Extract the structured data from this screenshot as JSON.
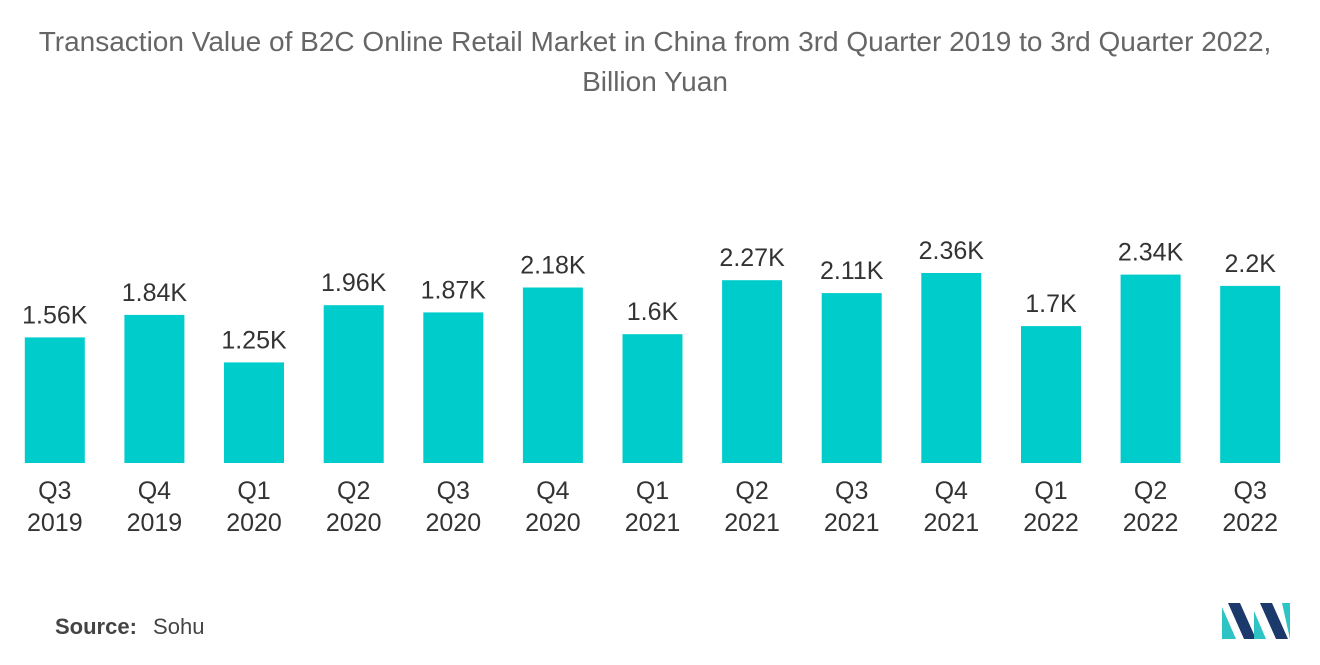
{
  "chart_data": {
    "type": "bar",
    "title": "Transaction Value of B2C Online Retail Market in China from 3rd Quarter 2019 to 3rd Quarter 2022, Billion Yuan",
    "xlabel": "",
    "ylabel": "",
    "categories": [
      [
        "Q3",
        "2019"
      ],
      [
        "Q4",
        "2019"
      ],
      [
        "Q1",
        "2020"
      ],
      [
        "Q2",
        "2020"
      ],
      [
        "Q3",
        "2020"
      ],
      [
        "Q4",
        "2020"
      ],
      [
        "Q1",
        "2021"
      ],
      [
        "Q2",
        "2021"
      ],
      [
        "Q3",
        "2021"
      ],
      [
        "Q4",
        "2021"
      ],
      [
        "Q1",
        "2022"
      ],
      [
        "Q2",
        "2022"
      ],
      [
        "Q3",
        "2022"
      ]
    ],
    "values": [
      1560,
      1840,
      1250,
      1960,
      1870,
      2180,
      1600,
      2270,
      2110,
      2360,
      1700,
      2340,
      2200
    ],
    "value_labels": [
      "1.56K",
      "1.84K",
      "1.25K",
      "1.96K",
      "1.87K",
      "2.18K",
      "1.6K",
      "2.27K",
      "2.11K",
      "2.36K",
      "1.7K",
      "2.34K",
      "2.2K"
    ],
    "ylim": [
      0,
      2360
    ],
    "grid": false,
    "legend": "none",
    "bar_color": "#00cccc"
  },
  "source": {
    "label": "Source:",
    "value": "Sohu"
  },
  "logo": {
    "icon": "mordor-intelligence-logo",
    "colors": [
      "#1b3a6b",
      "#2ec4c4"
    ]
  }
}
